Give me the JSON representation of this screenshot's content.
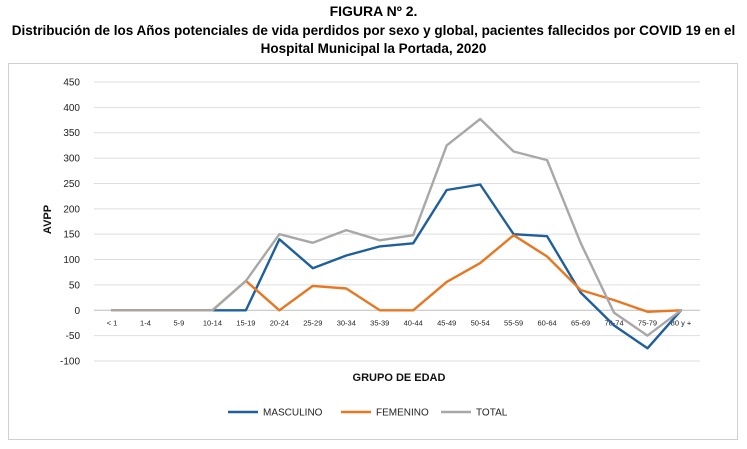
{
  "figure": {
    "label": "FIGURA Nº 2.",
    "title_line1": "Distribución de los Años potenciales de vida perdidos por sexo y global, pacientes fallecidos por COVID 19 en el",
    "title_line2": "Hospital Municipal la Portada, 2020"
  },
  "chart_data": {
    "type": "line",
    "title": "",
    "xlabel": "GRUPO DE EDAD",
    "ylabel": "AVPP",
    "ylim": [
      -100,
      450
    ],
    "yticks": [
      450,
      400,
      350,
      300,
      250,
      200,
      150,
      100,
      50,
      0,
      -50,
      -100
    ],
    "grid": true,
    "legend_position": "bottom",
    "categories": [
      "< 1",
      "1-4",
      "5-9",
      "10-14",
      "15-19",
      "20-24",
      "25-29",
      "30-34",
      "35-39",
      "40-44",
      "45-49",
      "50-54",
      "55-59",
      "60-64",
      "65-69",
      "70-74",
      "75-79",
      "80 y +"
    ],
    "series": [
      {
        "name": "MASCULINO",
        "color": "#1f5f9e",
        "values": [
          0,
          0,
          0,
          0,
          0,
          140,
          83,
          108,
          126,
          132,
          237,
          248,
          150,
          146,
          35,
          -30,
          -75,
          0
        ]
      },
      {
        "name": "FEMENINO",
        "color": "#e87722",
        "values": [
          0,
          0,
          0,
          0,
          58,
          0,
          48,
          43,
          0,
          0,
          56,
          93,
          148,
          106,
          40,
          20,
          -3,
          0
        ]
      },
      {
        "name": "TOTAL",
        "color": "#a8a8a8",
        "values": [
          0,
          0,
          0,
          0,
          58,
          150,
          133,
          158,
          138,
          148,
          325,
          377,
          313,
          296,
          133,
          -5,
          -50,
          0
        ]
      }
    ]
  }
}
